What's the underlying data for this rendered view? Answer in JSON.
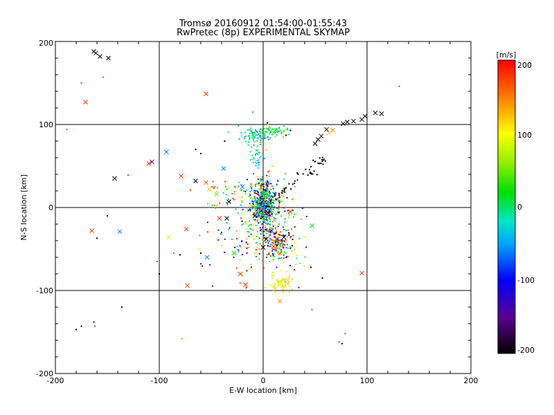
{
  "chart_data": {
    "type": "scatter",
    "title": "Tromsø 20160912 01:54:00-01:55:43",
    "subtitle": "RwPretec (8p) EXPERIMENTAL SKYMAP",
    "xlabel": "E-W location [km]",
    "ylabel": "N-S location [km]",
    "xlim": [
      -200,
      200
    ],
    "ylim": [
      -200,
      200
    ],
    "xticks": [
      "-200",
      "-100",
      "0",
      "100",
      "200"
    ],
    "yticks": [
      "-200",
      "-100",
      "0",
      "100",
      "200"
    ],
    "grid": true,
    "colorbar": {
      "label": "[m/s]",
      "range": [
        -200,
        200
      ],
      "ticks": [
        "200",
        "100",
        "0",
        "-100",
        "-200"
      ]
    },
    "markers": [
      {
        "x": -163,
        "y": 188,
        "v": -200
      },
      {
        "x": -161,
        "y": 186,
        "v": -200
      },
      {
        "x": -157,
        "y": 182,
        "v": -200
      },
      {
        "x": -149,
        "y": 180,
        "v": -200
      },
      {
        "x": -171,
        "y": 127,
        "v": 180
      },
      {
        "x": -55,
        "y": 137,
        "v": 180
      },
      {
        "x": 61,
        "y": 94,
        "v": -200
      },
      {
        "x": 63,
        "y": 90,
        "v": 120
      },
      {
        "x": 67,
        "y": 93,
        "v": 150
      },
      {
        "x": 56,
        "y": 86,
        "v": -200
      },
      {
        "x": 53,
        "y": 82,
        "v": -200
      },
      {
        "x": 50,
        "y": 77,
        "v": -200
      },
      {
        "x": 77,
        "y": 101,
        "v": -200
      },
      {
        "x": 81,
        "y": 103,
        "v": -200
      },
      {
        "x": 87,
        "y": 104,
        "v": -200
      },
      {
        "x": 95,
        "y": 106,
        "v": -200
      },
      {
        "x": 98,
        "y": 110,
        "v": -200
      },
      {
        "x": 108,
        "y": 114,
        "v": -200
      },
      {
        "x": 114,
        "y": 113,
        "v": -200
      },
      {
        "x": -93,
        "y": 67,
        "v": -60
      },
      {
        "x": -110,
        "y": 53,
        "v": 180
      },
      {
        "x": -107,
        "y": 55,
        "v": -140
      },
      {
        "x": -143,
        "y": 35,
        "v": -200
      },
      {
        "x": -79,
        "y": 38,
        "v": 180
      },
      {
        "x": -65,
        "y": 32,
        "v": -200
      },
      {
        "x": -38,
        "y": 47,
        "v": -60
      },
      {
        "x": -55,
        "y": 30,
        "v": 160
      },
      {
        "x": -52,
        "y": 22,
        "v": 120
      },
      {
        "x": -45,
        "y": 16,
        "v": 50
      },
      {
        "x": -20,
        "y": 25,
        "v": -60
      },
      {
        "x": -33,
        "y": 7,
        "v": -200
      },
      {
        "x": -165,
        "y": -28,
        "v": 180
      },
      {
        "x": -138,
        "y": -29,
        "v": -60
      },
      {
        "x": -91,
        "y": -36,
        "v": 80
      },
      {
        "x": -74,
        "y": -26,
        "v": 180
      },
      {
        "x": -54,
        "y": -60,
        "v": -60
      },
      {
        "x": -42,
        "y": -13,
        "v": 180
      },
      {
        "x": -35,
        "y": -13,
        "v": -200
      },
      {
        "x": -28,
        "y": -55,
        "v": 20
      },
      {
        "x": -73,
        "y": -94,
        "v": 180
      },
      {
        "x": -22,
        "y": -80,
        "v": 180
      },
      {
        "x": -17,
        "y": -93,
        "v": 180
      },
      {
        "x": 26,
        "y": -5,
        "v": 180
      },
      {
        "x": 47,
        "y": -22,
        "v": 20
      },
      {
        "x": 95,
        "y": -79,
        "v": 180
      },
      {
        "x": 13,
        "y": -38,
        "v": 180
      },
      {
        "x": 18,
        "y": -42,
        "v": 150
      },
      {
        "x": 10,
        "y": -47,
        "v": 180
      },
      {
        "x": 20,
        "y": -36,
        "v": -200
      },
      {
        "x": 16,
        "y": -55,
        "v": 160
      },
      {
        "x": 17,
        "y": -90,
        "v": 110
      },
      {
        "x": 15,
        "y": -94,
        "v": 100
      },
      {
        "x": 16,
        "y": -113,
        "v": 140
      },
      {
        "x": 0,
        "y": 0,
        "v": -60
      },
      {
        "x": 2,
        "y": 5,
        "v": -20
      },
      {
        "x": -2,
        "y": -4,
        "v": -150
      },
      {
        "x": 5,
        "y": -7,
        "v": -200
      },
      {
        "x": -6,
        "y": 8,
        "v": 20
      },
      {
        "x": -8,
        "y": -10,
        "v": -200
      },
      {
        "x": 7,
        "y": 12,
        "v": -40
      },
      {
        "x": 0,
        "y": -48,
        "v": -200
      },
      {
        "x": 3,
        "y": -38,
        "v": -200
      },
      {
        "x": 8,
        "y": -28,
        "v": -130
      }
    ],
    "dots": [
      {
        "x": -175,
        "y": 150,
        "v": 180
      },
      {
        "x": -154,
        "y": 157,
        "v": 180
      },
      {
        "x": -189,
        "y": 94,
        "v": 180
      },
      {
        "x": 131,
        "y": 146,
        "v": 180
      },
      {
        "x": -65,
        "y": 70,
        "v": -200
      },
      {
        "x": -60,
        "y": 65,
        "v": -200
      },
      {
        "x": -130,
        "y": 39,
        "v": 180
      },
      {
        "x": -70,
        "y": 21,
        "v": 180
      },
      {
        "x": -150,
        "y": -10,
        "v": -200
      },
      {
        "x": -160,
        "y": -37,
        "v": -200
      },
      {
        "x": -102,
        "y": -65,
        "v": 180
      },
      {
        "x": -100,
        "y": -80,
        "v": -200
      },
      {
        "x": -86,
        "y": -55,
        "v": 180
      },
      {
        "x": -80,
        "y": -57,
        "v": -200
      },
      {
        "x": -60,
        "y": -55,
        "v": -200
      },
      {
        "x": -136,
        "y": -120,
        "v": -200
      },
      {
        "x": -180,
        "y": -147,
        "v": -200
      },
      {
        "x": -175,
        "y": -143,
        "v": -200
      },
      {
        "x": -163,
        "y": -138,
        "v": -200
      },
      {
        "x": -162,
        "y": -143,
        "v": 180
      },
      {
        "x": -78,
        "y": -158,
        "v": 40
      },
      {
        "x": 47,
        "y": -123,
        "v": 180
      },
      {
        "x": 73,
        "y": -162,
        "v": 180
      },
      {
        "x": 76,
        "y": -164,
        "v": -200
      },
      {
        "x": 79,
        "y": -152,
        "v": 180
      },
      {
        "x": 57,
        "y": -85,
        "v": -200
      },
      {
        "x": 46,
        "y": -72,
        "v": -200
      },
      {
        "x": 26,
        "y": 93,
        "v": -130
      },
      {
        "x": 22,
        "y": 87,
        "v": -200
      },
      {
        "x": 4,
        "y": 102,
        "v": -200
      },
      {
        "x": -37,
        "y": 80,
        "v": -200
      },
      {
        "x": -10,
        "y": 115,
        "v": 20
      },
      {
        "x": -40,
        "y": -30,
        "v": -200
      },
      {
        "x": -29,
        "y": 11,
        "v": 180
      },
      {
        "x": 28,
        "y": -46,
        "v": -200
      },
      {
        "x": 26,
        "y": -70,
        "v": -200
      },
      {
        "x": 30,
        "y": -75,
        "v": -200
      }
    ],
    "clusters": [
      {
        "x": 0,
        "y": 5,
        "sx": 6,
        "sy": 14,
        "n": 420,
        "vmin": -200,
        "vmax": 60
      },
      {
        "x": 0,
        "y": 0,
        "sx": 12,
        "sy": 22,
        "n": 180,
        "vmin": -60,
        "vmax": 200
      },
      {
        "x": 14,
        "y": -43,
        "sx": 7,
        "sy": 9,
        "n": 160,
        "vmin": -200,
        "vmax": 200
      },
      {
        "x": 17,
        "y": -92,
        "sx": 5,
        "sy": 6,
        "n": 60,
        "vmin": 70,
        "vmax": 130
      },
      {
        "x": -7,
        "y": 86,
        "sx": 8,
        "sy": 5,
        "n": 80,
        "vmin": -60,
        "vmax": 40
      },
      {
        "x": 10,
        "y": 92,
        "sx": 9,
        "sy": 3,
        "n": 60,
        "vmin": -40,
        "vmax": 60
      },
      {
        "x": -5,
        "y": 60,
        "sx": 3,
        "sy": 8,
        "n": 30,
        "vmin": -60,
        "vmax": 20
      },
      {
        "x": -15,
        "y": -35,
        "sx": 18,
        "sy": 25,
        "n": 90,
        "vmin": -200,
        "vmax": 200
      },
      {
        "x": -35,
        "y": 15,
        "sx": 10,
        "sy": 10,
        "n": 40,
        "vmin": -60,
        "vmax": 200
      },
      {
        "x": 30,
        "y": -30,
        "sx": 8,
        "sy": 25,
        "n": 40,
        "vmin": -200,
        "vmax": 200
      }
    ],
    "black_line": {
      "from": [
        0,
        0
      ],
      "to": [
        60,
        60
      ],
      "n": 60,
      "jitter": 3,
      "v": -200
    }
  }
}
